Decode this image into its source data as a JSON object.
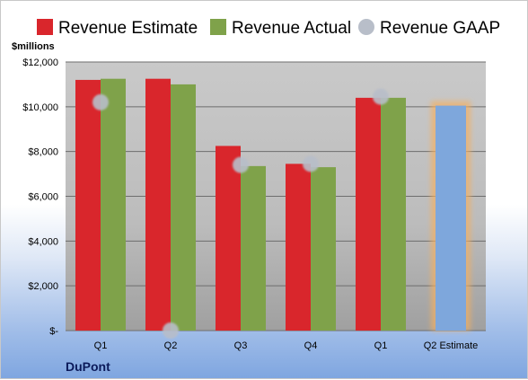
{
  "chart_data": {
    "type": "bar",
    "categories": [
      "Q1",
      "Q2",
      "Q3",
      "Q4",
      "Q1",
      "Q2 Estimate"
    ],
    "series": [
      {
        "name": "Revenue Estimate",
        "values": [
          11200,
          11250,
          8250,
          7450,
          10400,
          null
        ],
        "color": "#d9262c"
      },
      {
        "name": "Revenue Actual",
        "values": [
          11250,
          11000,
          7350,
          7300,
          10400,
          null
        ],
        "color": "#7fa24a"
      },
      {
        "name": "Revenue GAAP",
        "values": [
          10200,
          0,
          7400,
          7450,
          10450,
          null
        ],
        "color": "#b8bec9"
      }
    ],
    "estimate": {
      "category": "Q2 Estimate",
      "value": 10050,
      "color": "#7ea7dc",
      "glow_color": "#f5b060"
    },
    "ylabel": "$millions",
    "ylim": [
      0,
      12000
    ],
    "yticks": [
      0,
      2000,
      4000,
      6000,
      8000,
      10000,
      12000
    ],
    "ytick_labels": [
      "$-",
      "$2,000",
      "$4,000",
      "$6,000",
      "$8,000",
      "$10,000",
      "$12,000"
    ],
    "grid": true,
    "legend": "top",
    "company": "DuPont"
  }
}
